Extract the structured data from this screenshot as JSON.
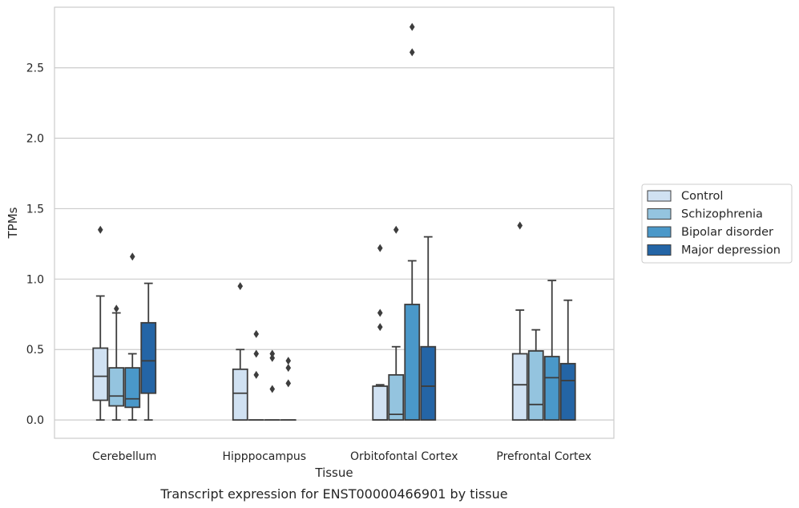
{
  "caption": "Transcript expression for ENST00000466901 by tissue",
  "chart_data": {
    "type": "box",
    "title": "",
    "xlabel": "Tissue",
    "ylabel": "TPMs",
    "ylim": [
      -0.13,
      2.93
    ],
    "yticks": [
      0.0,
      0.5,
      1.0,
      1.5,
      2.0,
      2.5
    ],
    "ytick_labels": [
      "0.0",
      "0.5",
      "1.0",
      "1.5",
      "2.0",
      "2.5"
    ],
    "grid": "horizontal",
    "legend_position": "right",
    "categories": [
      "Cerebellum",
      "Hipppocampus",
      "Orbitofontal Cortex",
      "Prefrontal Cortex"
    ],
    "series": [
      {
        "name": "Control",
        "color": "#d0e1f2",
        "boxes": [
          {
            "whislo": 0.0,
            "q1": 0.14,
            "median": 0.31,
            "q3": 0.51,
            "whishi": 0.88,
            "fliers": [
              1.35
            ]
          },
          {
            "whislo": 0.0,
            "q1": 0.0,
            "median": 0.19,
            "q3": 0.36,
            "whishi": 0.5,
            "fliers": [
              0.95
            ]
          },
          {
            "whislo": 0.0,
            "q1": 0.0,
            "median": 0.0,
            "q3": 0.24,
            "whishi": 0.25,
            "fliers": [
              0.66,
              0.76,
              1.22
            ]
          },
          {
            "whislo": 0.0,
            "q1": 0.0,
            "median": 0.25,
            "q3": 0.47,
            "whishi": 0.78,
            "fliers": [
              1.38
            ]
          }
        ]
      },
      {
        "name": "Schizophrenia",
        "color": "#94c4df",
        "boxes": [
          {
            "whislo": 0.0,
            "q1": 0.1,
            "median": 0.17,
            "q3": 0.37,
            "whishi": 0.76,
            "fliers": [
              0.79
            ]
          },
          {
            "whislo": 0.0,
            "q1": 0.0,
            "median": 0.0,
            "q3": 0.0,
            "whishi": 0.0,
            "fliers": [
              0.32,
              0.47,
              0.61
            ]
          },
          {
            "whislo": 0.0,
            "q1": 0.0,
            "median": 0.04,
            "q3": 0.32,
            "whishi": 0.52,
            "fliers": [
              1.35
            ]
          },
          {
            "whislo": 0.0,
            "q1": 0.0,
            "median": 0.11,
            "q3": 0.49,
            "whishi": 0.64,
            "fliers": []
          }
        ]
      },
      {
        "name": "Bipolar disorder",
        "color": "#4a98c9",
        "boxes": [
          {
            "whislo": 0.0,
            "q1": 0.09,
            "median": 0.15,
            "q3": 0.37,
            "whishi": 0.47,
            "fliers": [
              1.16
            ]
          },
          {
            "whislo": 0.0,
            "q1": 0.0,
            "median": 0.0,
            "q3": 0.0,
            "whishi": 0.0,
            "fliers": [
              0.22,
              0.44,
              0.47
            ]
          },
          {
            "whislo": 0.0,
            "q1": 0.0,
            "median": 0.0,
            "q3": 0.82,
            "whishi": 1.13,
            "fliers": [
              2.61,
              2.79
            ]
          },
          {
            "whislo": 0.0,
            "q1": 0.0,
            "median": 0.3,
            "q3": 0.45,
            "whishi": 0.99,
            "fliers": []
          }
        ]
      },
      {
        "name": "Major depression",
        "color": "#2465a6",
        "boxes": [
          {
            "whislo": 0.0,
            "q1": 0.19,
            "median": 0.42,
            "q3": 0.69,
            "whishi": 0.97,
            "fliers": []
          },
          {
            "whislo": 0.0,
            "q1": 0.0,
            "median": 0.0,
            "q3": 0.0,
            "whishi": 0.0,
            "fliers": [
              0.26,
              0.37,
              0.42
            ]
          },
          {
            "whislo": 0.0,
            "q1": 0.0,
            "median": 0.24,
            "q3": 0.52,
            "whishi": 1.3,
            "fliers": []
          },
          {
            "whislo": 0.0,
            "q1": 0.0,
            "median": 0.28,
            "q3": 0.4,
            "whishi": 0.85,
            "fliers": []
          }
        ]
      }
    ]
  }
}
